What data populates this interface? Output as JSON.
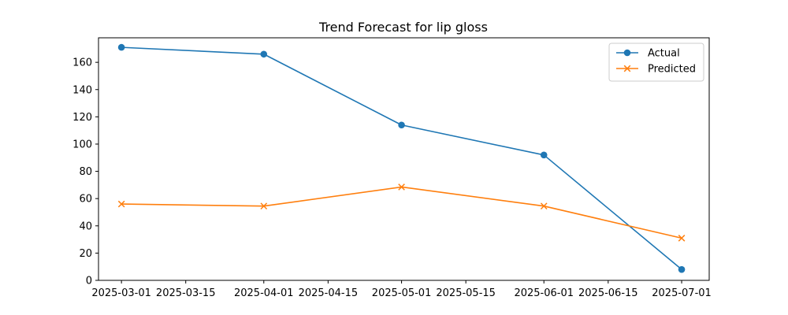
{
  "chart_data": {
    "type": "line",
    "title": "Trend Forecast for lip gloss",
    "xlabel": "",
    "ylabel": "",
    "x": [
      "2025-03-01",
      "2025-04-01",
      "2025-05-01",
      "2025-06-01",
      "2025-07-01"
    ],
    "series": [
      {
        "name": "Actual",
        "values": [
          171,
          166,
          114,
          92,
          8
        ],
        "color": "#1f77b4",
        "marker": "circle"
      },
      {
        "name": "Predicted",
        "values": [
          56,
          54.5,
          68.5,
          54.5,
          31
        ],
        "color": "#ff7f0e",
        "marker": "x"
      }
    ],
    "xlim": [
      "2025-02-24",
      "2025-07-07"
    ],
    "ylim": [
      0,
      178
    ],
    "x_ticks": [
      "2025-03-01",
      "2025-03-15",
      "2025-04-01",
      "2025-04-15",
      "2025-05-01",
      "2025-05-15",
      "2025-06-01",
      "2025-06-15",
      "2025-07-01"
    ],
    "y_ticks": [
      0,
      20,
      40,
      60,
      80,
      100,
      120,
      140,
      160
    ],
    "grid": false,
    "legend_position": "top-right"
  }
}
